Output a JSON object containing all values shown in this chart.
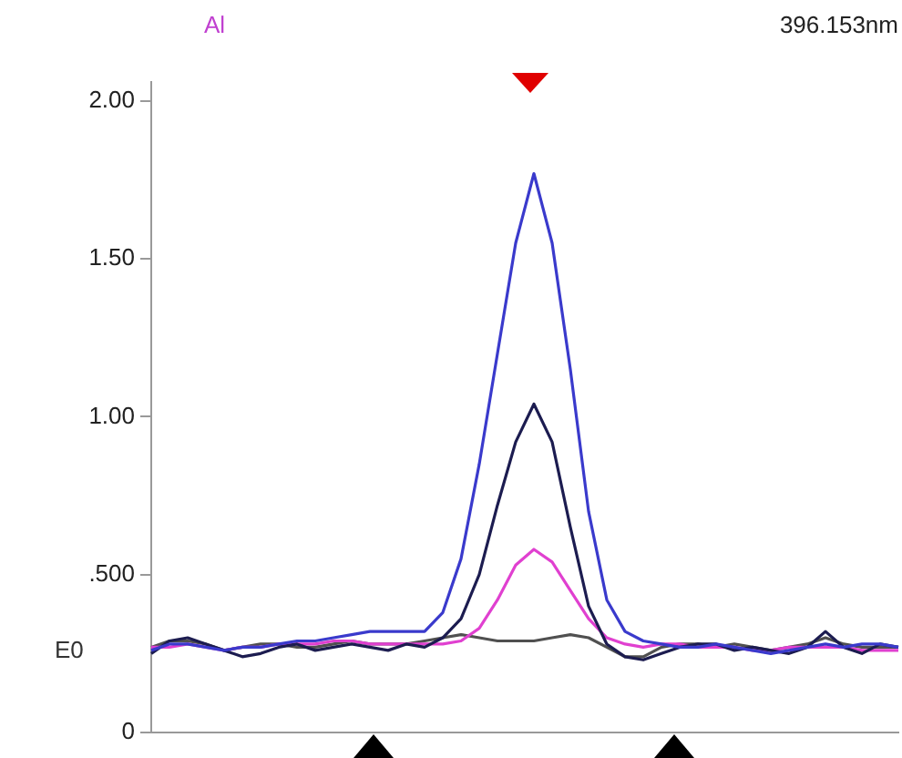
{
  "chart_data": {
    "type": "line",
    "title": "Al",
    "subtitle": "396.153nm",
    "annotations": [
      "E0"
    ],
    "categories": [
      null,
      null,
      null,
      null,
      null,
      null,
      null,
      null,
      null,
      null,
      null,
      null,
      null,
      null,
      null,
      null,
      null,
      null,
      null,
      null,
      null,
      null,
      null,
      null,
      null,
      null,
      null,
      null,
      null,
      null,
      null,
      null,
      null,
      null,
      null,
      null,
      null,
      null,
      null,
      null,
      null,
      null
    ],
    "series": [
      {
        "color": "#3a3acc",
        "values": [
          0.26,
          0.28,
          0.28,
          0.27,
          0.26,
          0.27,
          0.27,
          0.28,
          0.29,
          0.29,
          0.3,
          0.31,
          0.32,
          0.32,
          0.32,
          0.32,
          0.38,
          0.55,
          0.85,
          1.2,
          1.55,
          1.77,
          1.55,
          1.15,
          0.7,
          0.42,
          0.32,
          0.29,
          0.28,
          0.27,
          0.27,
          0.28,
          0.27,
          0.26,
          0.25,
          0.26,
          0.27,
          0.28,
          0.27,
          0.28,
          0.28,
          0.27
        ]
      },
      {
        "color": "#1c1c50",
        "values": [
          0.25,
          0.29,
          0.3,
          0.28,
          0.26,
          0.24,
          0.25,
          0.27,
          0.28,
          0.26,
          0.27,
          0.28,
          0.27,
          0.26,
          0.28,
          0.27,
          0.3,
          0.36,
          0.5,
          0.72,
          0.92,
          1.04,
          0.92,
          0.65,
          0.4,
          0.28,
          0.24,
          0.23,
          0.25,
          0.27,
          0.28,
          0.28,
          0.26,
          0.27,
          0.26,
          0.25,
          0.27,
          0.32,
          0.27,
          0.25,
          0.28,
          0.27
        ]
      },
      {
        "color": "#e040d0",
        "values": [
          0.27,
          0.27,
          0.28,
          0.27,
          0.26,
          0.27,
          0.27,
          0.28,
          0.28,
          0.28,
          0.29,
          0.29,
          0.28,
          0.28,
          0.28,
          0.28,
          0.28,
          0.29,
          0.33,
          0.42,
          0.53,
          0.58,
          0.54,
          0.45,
          0.36,
          0.3,
          0.28,
          0.27,
          0.28,
          0.28,
          0.27,
          0.27,
          0.27,
          0.26,
          0.26,
          0.27,
          0.27,
          0.27,
          0.27,
          0.26,
          0.26,
          0.26
        ]
      },
      {
        "color": "#505050",
        "values": [
          0.27,
          0.29,
          0.29,
          0.28,
          0.26,
          0.27,
          0.28,
          0.28,
          0.27,
          0.27,
          0.28,
          0.29,
          0.28,
          0.28,
          0.28,
          0.29,
          0.3,
          0.31,
          0.3,
          0.29,
          0.29,
          0.29,
          0.3,
          0.31,
          0.3,
          0.27,
          0.24,
          0.24,
          0.27,
          0.28,
          0.28,
          0.27,
          0.28,
          0.27,
          0.26,
          0.27,
          0.28,
          0.3,
          0.28,
          0.27,
          0.27,
          0.27
        ]
      }
    ],
    "ylim": [
      0,
      2.06
    ],
    "yticks": [
      {
        "value": 2,
        "label": "2.00"
      },
      {
        "value": 1.5,
        "label": "1.50"
      },
      {
        "value": 1,
        "label": "1.00"
      },
      {
        "value": 0.5,
        "label": ".500"
      },
      0
    ],
    "tick_labels": "y",
    "grid": false,
    "legend": false,
    "marker": "none",
    "line_style": "solid"
  }
}
